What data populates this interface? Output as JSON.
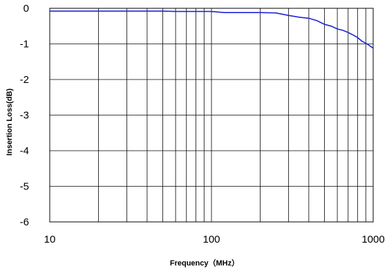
{
  "colors": {
    "series": "#1f24d6",
    "grid": "#000000",
    "background": "#ffffff"
  },
  "chart_data": {
    "type": "line",
    "xlabel": "Frequency（MHz）",
    "ylabel": "Insertion Loss(dB)",
    "xscale": "log",
    "xlim": [
      10,
      1000
    ],
    "ylim": [
      -6,
      0
    ],
    "grid": true,
    "legend": "none",
    "xticks": [
      10,
      100,
      1000
    ],
    "xtick_labels": [
      "10",
      "100",
      "1000"
    ],
    "yticks": [
      0,
      -1,
      -2,
      -3,
      -4,
      -5,
      -6
    ],
    "ytick_labels": [
      "0",
      "-1",
      "-2",
      "-3",
      "-4",
      "-5",
      "-6"
    ],
    "series": [
      {
        "x": [
          10,
          20,
          30,
          40,
          50,
          60,
          70,
          80,
          90,
          100,
          120,
          150,
          200,
          250,
          300,
          350,
          400,
          450,
          500,
          550,
          600,
          650,
          700,
          750,
          800,
          850,
          900,
          950,
          1000
        ],
        "y": [
          -0.08,
          -0.08,
          -0.08,
          -0.08,
          -0.08,
          -0.09,
          -0.09,
          -0.09,
          -0.09,
          -0.09,
          -0.12,
          -0.12,
          -0.12,
          -0.13,
          -0.2,
          -0.25,
          -0.28,
          -0.35,
          -0.45,
          -0.5,
          -0.58,
          -0.62,
          -0.68,
          -0.75,
          -0.82,
          -0.92,
          -0.98,
          -1.05,
          -1.12
        ]
      }
    ]
  }
}
